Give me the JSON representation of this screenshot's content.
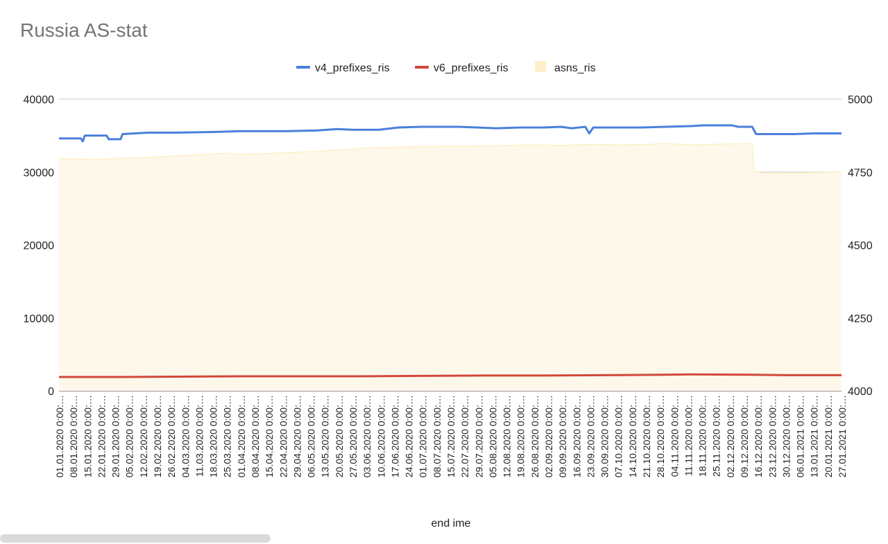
{
  "chart_data": {
    "type": "line",
    "title": "Russia AS-stat",
    "xlabel": "end ime",
    "ylabel": "",
    "ylabel_right": "",
    "legend_position": "top",
    "grid": true,
    "ylim": [
      0,
      40000
    ],
    "ylim_right": [
      4000,
      5000
    ],
    "y_ticks": [
      "0",
      "10000",
      "20000",
      "30000",
      "40000"
    ],
    "y_ticks_right": [
      "4000",
      "4250",
      "4500",
      "4750",
      "5000"
    ],
    "x_range": [
      "2020-01-01",
      "2021-01-29"
    ],
    "x_ticks": [
      "01.01.2020 0:00:…",
      "08.01.2020 0:00:…",
      "15.01.2020 0:00:…",
      "22.01.2020 0:00:…",
      "29.01.2020 0:00:…",
      "05.02.2020 0:00:…",
      "12.02.2020 0:00:…",
      "19.02.2020 0:00:…",
      "26.02.2020 0:00:…",
      "04.03.2020 0:00:…",
      "11.03.2020 0:00:…",
      "18.03.2020 0:00:…",
      "25.03.2020 0:00:…",
      "01.04.2020 0:00:…",
      "08.04.2020 0:00:…",
      "15.04.2020 0:00:…",
      "22.04.2020 0:00:…",
      "29.04.2020 0:00:…",
      "06.05.2020 0:00:…",
      "13.05.2020 0:00:…",
      "20.05.2020 0:00:…",
      "27.05.2020 0:00:…",
      "03.06.2020 0:00:…",
      "10.06.2020 0:00:…",
      "17.06.2020 0:00:…",
      "24.06.2020 0:00:…",
      "01.07.2020 0:00:…",
      "08.07.2020 0:00:…",
      "15.07.2020 0:00:…",
      "22.07.2020 0:00:…",
      "29.07.2020 0:00:…",
      "05.08.2020 0:00:…",
      "12.08.2020 0:00:…",
      "19.08.2020 0:00:…",
      "26.08.2020 0:00:…",
      "02.09.2020 0:00:…",
      "09.09.2020 0:00:…",
      "16.09.2020 0:00:…",
      "23.09.2020 0:00:…",
      "30.09.2020 0:00:…",
      "07.10.2020 0:00:…",
      "14.10.2020 0:00:…",
      "21.10.2020 0:00:…",
      "28.10.2020 0:00:…",
      "04.11.2020 0:00:…",
      "11.11.2020 0:00:…",
      "18.11.2020 0:00:…",
      "25.11.2020 0:00:…",
      "02.12.2020 0:00:…",
      "09.12.2020 0:00:…",
      "16.12.2020 0:00:…",
      "23.12.2020 0:00:…",
      "30.12.2020 0:00:…",
      "06.01.2021 0:00:…",
      "13.01.2021 0:00:…",
      "20.01.2021 0:00:…",
      "27.01.2021 0:00:…"
    ],
    "series": [
      {
        "name": "v4_prefixes_ris",
        "axis": "left",
        "style": "line",
        "color": "#4a7fdc",
        "points": [
          [
            "2020-01-01",
            34600
          ],
          [
            "2020-01-12",
            34600
          ],
          [
            "2020-01-13",
            34200
          ],
          [
            "2020-01-14",
            35000
          ],
          [
            "2020-01-25",
            35000
          ],
          [
            "2020-01-26",
            34500
          ],
          [
            "2020-02-01",
            34500
          ],
          [
            "2020-02-02",
            35200
          ],
          [
            "2020-02-15",
            35400
          ],
          [
            "2020-03-01",
            35400
          ],
          [
            "2020-03-20",
            35500
          ],
          [
            "2020-04-01",
            35600
          ],
          [
            "2020-04-25",
            35600
          ],
          [
            "2020-05-10",
            35700
          ],
          [
            "2020-05-20",
            35900
          ],
          [
            "2020-05-28",
            35800
          ],
          [
            "2020-06-10",
            35800
          ],
          [
            "2020-06-20",
            36100
          ],
          [
            "2020-07-01",
            36200
          ],
          [
            "2020-07-20",
            36200
          ],
          [
            "2020-07-30",
            36100
          ],
          [
            "2020-08-08",
            36000
          ],
          [
            "2020-08-20",
            36100
          ],
          [
            "2020-09-01",
            36100
          ],
          [
            "2020-09-10",
            36200
          ],
          [
            "2020-09-15",
            36000
          ],
          [
            "2020-09-22",
            36200
          ],
          [
            "2020-09-24",
            35300
          ],
          [
            "2020-09-26",
            36100
          ],
          [
            "2020-10-20",
            36100
          ],
          [
            "2020-11-01",
            36200
          ],
          [
            "2020-11-15",
            36300
          ],
          [
            "2020-11-20",
            36400
          ],
          [
            "2020-12-05",
            36400
          ],
          [
            "2020-12-08",
            36200
          ],
          [
            "2020-12-15",
            36200
          ],
          [
            "2020-12-17",
            35200
          ],
          [
            "2021-01-05",
            35200
          ],
          [
            "2021-01-15",
            35300
          ],
          [
            "2021-01-29",
            35300
          ]
        ]
      },
      {
        "name": "v6_prefixes_ris",
        "axis": "left",
        "style": "line",
        "color": "#d1473b",
        "points": [
          [
            "2020-01-01",
            1900
          ],
          [
            "2020-02-01",
            1900
          ],
          [
            "2020-03-01",
            1950
          ],
          [
            "2020-04-01",
            2000
          ],
          [
            "2020-05-01",
            2000
          ],
          [
            "2020-06-01",
            2000
          ],
          [
            "2020-07-01",
            2050
          ],
          [
            "2020-08-01",
            2100
          ],
          [
            "2020-09-01",
            2100
          ],
          [
            "2020-10-01",
            2150
          ],
          [
            "2020-11-01",
            2200
          ],
          [
            "2020-11-15",
            2250
          ],
          [
            "2020-12-15",
            2200
          ],
          [
            "2021-01-01",
            2150
          ],
          [
            "2021-01-29",
            2150
          ]
        ]
      },
      {
        "name": "asns_ris",
        "axis": "right",
        "style": "area",
        "color": "#fdf0c8",
        "points": [
          [
            "2020-01-01",
            4795
          ],
          [
            "2020-01-20",
            4793
          ],
          [
            "2020-02-01",
            4797
          ],
          [
            "2020-02-15",
            4800
          ],
          [
            "2020-03-01",
            4806
          ],
          [
            "2020-03-15",
            4810
          ],
          [
            "2020-03-25",
            4815
          ],
          [
            "2020-04-01",
            4810
          ],
          [
            "2020-04-20",
            4815
          ],
          [
            "2020-05-10",
            4821
          ],
          [
            "2020-05-25",
            4827
          ],
          [
            "2020-06-10",
            4834
          ],
          [
            "2020-07-01",
            4837
          ],
          [
            "2020-08-01",
            4839
          ],
          [
            "2020-08-25",
            4843
          ],
          [
            "2020-09-10",
            4841
          ],
          [
            "2020-09-25",
            4845
          ],
          [
            "2020-10-10",
            4843
          ],
          [
            "2020-10-25",
            4845
          ],
          [
            "2020-11-01",
            4848
          ],
          [
            "2020-11-15",
            4843
          ],
          [
            "2020-12-01",
            4846
          ],
          [
            "2020-12-15",
            4847
          ],
          [
            "2020-12-16",
            4750
          ],
          [
            "2020-12-25",
            4745
          ],
          [
            "2021-01-10",
            4747
          ],
          [
            "2021-01-29",
            4750
          ]
        ]
      }
    ]
  },
  "legend": {
    "items": [
      {
        "label": "v4_prefixes_ris",
        "color": "#4a7fdc"
      },
      {
        "label": "v6_prefixes_ris",
        "color": "#d1473b"
      },
      {
        "label": "asns_ris",
        "color": "#fdf0c8"
      }
    ]
  }
}
